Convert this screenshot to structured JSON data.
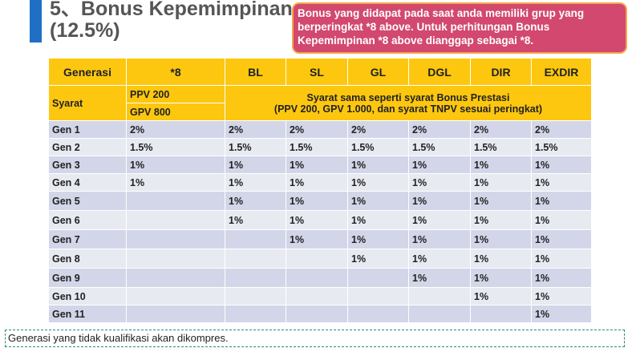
{
  "title": {
    "line1": "5、Bonus Kepemimpinan",
    "line2": "(12.5%)"
  },
  "callout": {
    "text": "Bonus yang didapat pada saat anda memiliki grup yang berperingkat *8 above. Untuk perhitungan Bonus Kepemimpinan *8 above dianggap sebagai *8.",
    "reflection": "Bonus Kepemimpinan *8 above dianggap sebagai *8."
  },
  "colors": {
    "header": "#fdc70f",
    "callout": "#d2486e",
    "accent": "#1f6fc5"
  },
  "table": {
    "headers": [
      "Generasi",
      "*8",
      "BL",
      "SL",
      "GL",
      "DGL",
      "DIR",
      "EXDIR"
    ],
    "syarat": {
      "label": "Syarat",
      "req1": "PPV 200",
      "req2": "GPV 800",
      "note1": "Syarat sama seperti syarat Bonus  Prestasi",
      "note2": "(PPV 200,  GPV 1.000,  dan syarat TNPV sesuai  peringkat)"
    },
    "rows": [
      [
        "Gen 1",
        "2%",
        "2%",
        "2%",
        "2%",
        "2%",
        "2%",
        "2%"
      ],
      [
        "Gen 2",
        "1.5%",
        "1.5%",
        "1.5%",
        "1.5%",
        "1.5%",
        "1.5%",
        "1.5%"
      ],
      [
        "Gen 3",
        "1%",
        "1%",
        "1%",
        "1%",
        "1%",
        "1%",
        "1%"
      ],
      [
        "Gen 4",
        "1%",
        "1%",
        "1%",
        "1%",
        "1%",
        "1%",
        "1%"
      ],
      [
        "Gen 5",
        "",
        "1%",
        "1%",
        "1%",
        "1%",
        "1%",
        "1%"
      ],
      [
        "Gen  6",
        "",
        "1%",
        "1%",
        "1%",
        "1%",
        "1%",
        "1%"
      ],
      [
        "Gen 7",
        "",
        "",
        "1%",
        "1%",
        "1%",
        "1%",
        "1%"
      ],
      [
        "Gen 8",
        "",
        "",
        "",
        "1%",
        "1%",
        "1%",
        "1%"
      ],
      [
        "Gen 9",
        "",
        "",
        "",
        "",
        "1%",
        "1%",
        "1%"
      ],
      [
        "Gen 10",
        "",
        "",
        "",
        "",
        "",
        "1%",
        "1%"
      ],
      [
        "Gen 11",
        "",
        "",
        "",
        "",
        "",
        "",
        "1%"
      ]
    ]
  },
  "footer": "Generasi yang  tidak  kualifikasi  akan dikompres."
}
